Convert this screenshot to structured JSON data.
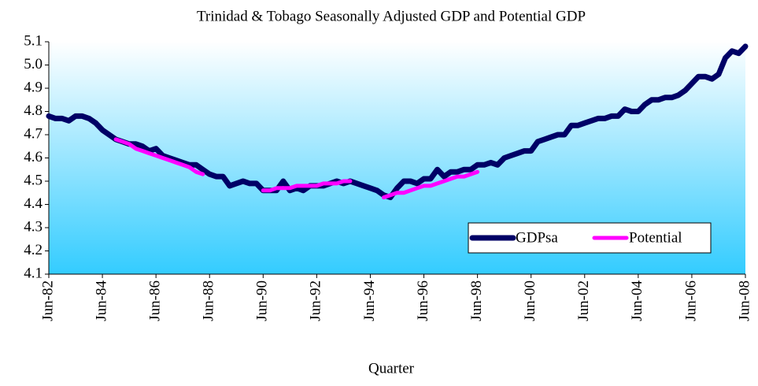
{
  "chart_data": {
    "type": "line",
    "title": "Trinidad & Tobago Seasonally Adjusted GDP and Potential GDP",
    "x_label": "Quarter",
    "categories": [
      "Jun-82",
      null,
      null,
      null,
      null,
      null,
      null,
      null,
      "Jun-84",
      null,
      null,
      null,
      null,
      null,
      null,
      null,
      "Jun-86",
      null,
      null,
      null,
      null,
      null,
      null,
      null,
      "Jun-88",
      null,
      null,
      null,
      null,
      null,
      null,
      null,
      "Jun-90",
      null,
      null,
      null,
      null,
      null,
      null,
      null,
      "Jun-92",
      null,
      null,
      null,
      null,
      null,
      null,
      null,
      "Jun-94",
      null,
      null,
      null,
      null,
      null,
      null,
      null,
      "Jun-96",
      null,
      null,
      null,
      null,
      null,
      null,
      null,
      "Jun-98",
      null,
      null,
      null,
      null,
      null,
      null,
      null,
      "Jun-00",
      null,
      null,
      null,
      null,
      null,
      null,
      null,
      "Jun-02",
      null,
      null,
      null,
      null,
      null,
      null,
      null,
      "Jun-04",
      null,
      null,
      null,
      null,
      null,
      null,
      null,
      "Jun-06",
      null,
      null,
      null,
      null,
      null,
      null,
      null,
      "Jun-08"
    ],
    "series": [
      {
        "name": "GDPsa",
        "color": "#000066",
        "values": [
          4.78,
          4.77,
          4.77,
          4.76,
          4.78,
          4.78,
          4.77,
          4.75,
          4.72,
          4.7,
          4.68,
          4.67,
          4.66,
          4.66,
          4.65,
          4.63,
          4.64,
          4.61,
          4.6,
          4.59,
          4.58,
          4.57,
          4.57,
          4.55,
          4.53,
          4.52,
          4.52,
          4.48,
          4.49,
          4.5,
          4.49,
          4.49,
          4.46,
          4.46,
          4.46,
          4.5,
          4.46,
          4.47,
          4.46,
          4.48,
          4.48,
          4.48,
          4.49,
          4.5,
          4.49,
          4.5,
          4.49,
          4.48,
          4.47,
          4.46,
          4.44,
          4.43,
          4.47,
          4.5,
          4.5,
          4.49,
          4.51,
          4.51,
          4.55,
          4.52,
          4.54,
          4.54,
          4.55,
          4.55,
          4.57,
          4.57,
          4.58,
          4.57,
          4.6,
          4.61,
          4.62,
          4.63,
          4.63,
          4.67,
          4.68,
          4.69,
          4.7,
          4.7,
          4.74,
          4.74,
          4.75,
          4.76,
          4.77,
          4.77,
          4.78,
          4.78,
          4.81,
          4.8,
          4.8,
          4.83,
          4.85,
          4.85,
          4.86,
          4.86,
          4.87,
          4.89,
          4.92,
          4.95,
          4.95,
          4.94,
          4.96,
          5.03,
          5.06,
          5.05,
          5.08
        ]
      },
      {
        "name": "Potential",
        "color": "#ff00ff",
        "values": [
          null,
          null,
          null,
          null,
          null,
          null,
          null,
          null,
          null,
          null,
          4.68,
          4.67,
          4.66,
          4.64,
          4.63,
          4.62,
          4.61,
          4.6,
          4.59,
          4.58,
          4.57,
          4.56,
          4.54,
          4.53,
          null,
          null,
          null,
          null,
          null,
          null,
          null,
          null,
          4.46,
          4.46,
          4.47,
          4.47,
          4.47,
          4.48,
          4.48,
          4.48,
          4.48,
          4.49,
          4.49,
          4.49,
          4.5,
          4.5,
          null,
          null,
          null,
          null,
          4.43,
          4.44,
          4.45,
          4.45,
          4.46,
          4.47,
          4.48,
          4.48,
          4.49,
          4.5,
          4.51,
          4.52,
          4.52,
          4.53,
          4.54,
          null,
          null,
          null,
          null,
          null,
          null,
          null,
          null,
          null,
          null,
          null,
          null,
          null,
          null,
          null,
          null,
          null,
          null,
          null,
          null,
          null,
          null,
          null,
          null,
          null,
          null,
          null,
          null,
          null,
          null,
          null,
          null,
          null,
          null,
          null,
          null,
          null,
          null,
          null,
          null
        ]
      }
    ],
    "ylim": [
      4.1,
      5.1
    ],
    "yticks": [
      4.1,
      4.2,
      4.3,
      4.4,
      4.5,
      4.6,
      4.7,
      4.8,
      4.9,
      {
        "value": 5,
        "label": "5.0"
      },
      5.1
    ],
    "grid": false,
    "legend": "lower right"
  }
}
